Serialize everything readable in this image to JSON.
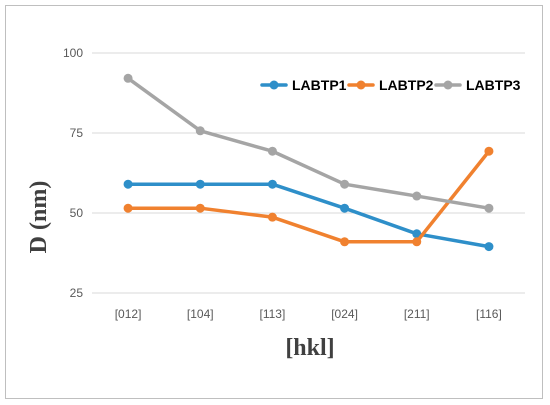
{
  "chart_data": {
    "type": "line",
    "categories": [
      "[012]",
      "[104]",
      "[113]",
      "[024]",
      "[211]",
      "[116]"
    ],
    "series": [
      {
        "name": "LABTP1",
        "color": "#2e8fc9",
        "values": [
          59,
          59,
          59,
          51.5,
          43.5,
          39.5
        ]
      },
      {
        "name": "LABTP2",
        "color": "#f0812f",
        "values": [
          51.5,
          51.5,
          48.7,
          41,
          41,
          69.3
        ]
      },
      {
        "name": "LABTP3",
        "color": "#a5a5a5",
        "values": [
          92.1,
          75.7,
          69.3,
          59,
          55.3,
          51.5
        ]
      }
    ],
    "xlabel": "[hkl]",
    "ylabel": "D (nm)",
    "ylim": [
      25,
      100
    ],
    "yticks": [
      25,
      50,
      75,
      100
    ],
    "grid": "horizontal",
    "legend_position": "top-right",
    "marker": "circle"
  }
}
